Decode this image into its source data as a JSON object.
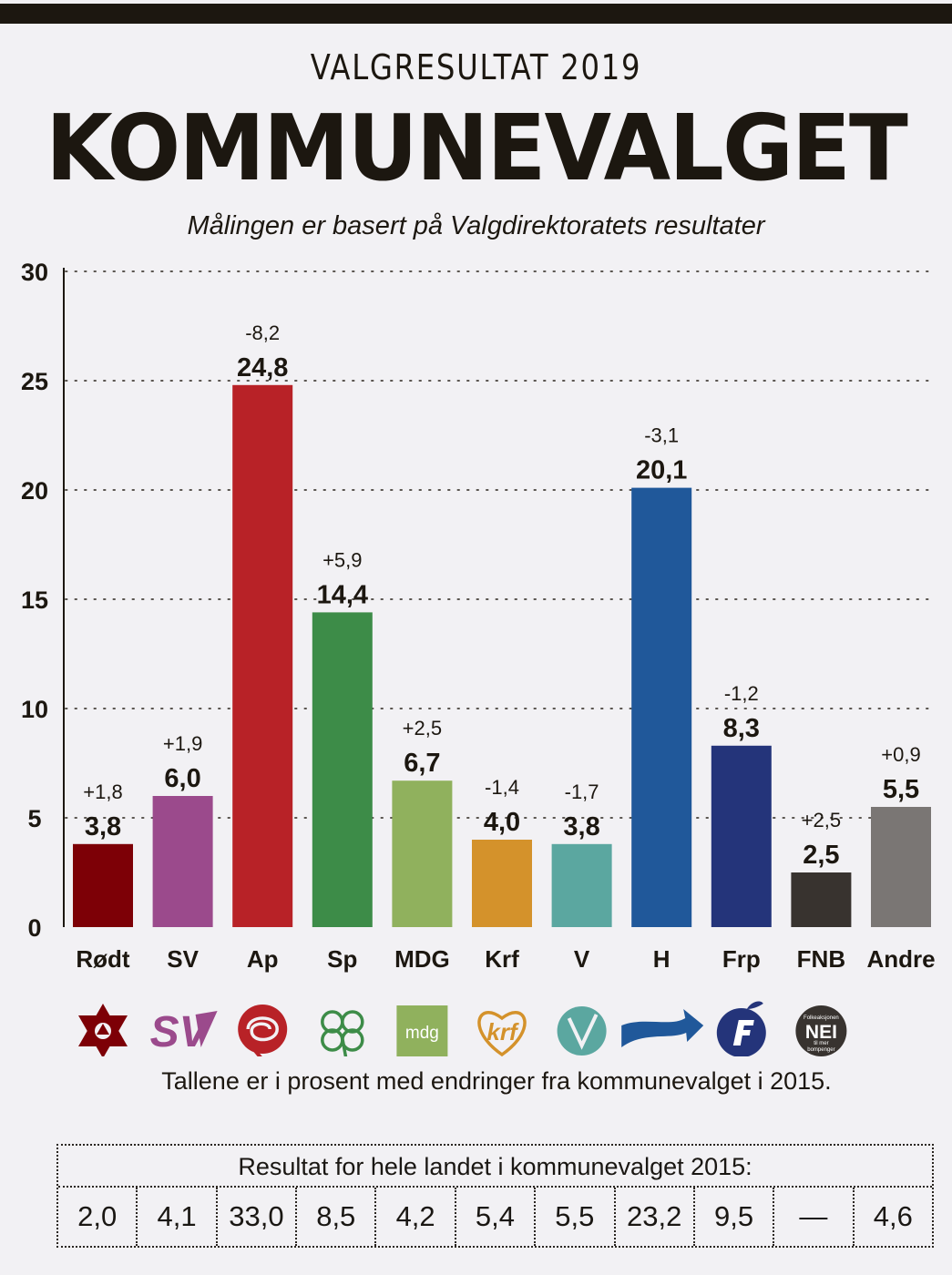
{
  "header": {
    "kicker": "VALGRESULTAT 2019",
    "headline": "KOMMUNEVALGET",
    "subtitle": "Målingen er basert på Valgdirektoratets resultater"
  },
  "chart_data": {
    "type": "bar",
    "title": "",
    "xlabel": "",
    "ylabel": "",
    "ylim": [
      0,
      30
    ],
    "yticks": [
      "0",
      "5",
      "10",
      "15",
      "20",
      "25",
      "30"
    ],
    "grid": true,
    "categories": [
      "Rødt",
      "SV",
      "Ap",
      "Sp",
      "MDG",
      "Krf",
      "V",
      "H",
      "Frp",
      "FNB",
      "Andre"
    ],
    "values": [
      3.8,
      6.0,
      24.8,
      14.4,
      6.7,
      4.0,
      3.8,
      20.1,
      8.3,
      2.5,
      5.5
    ],
    "value_labels": [
      "3,8",
      "6,0",
      "24,8",
      "14,4",
      "6,7",
      "4,0",
      "3,8",
      "20,1",
      "8,3",
      "2,5",
      "5,5"
    ],
    "changes": [
      "+1,8",
      "+1,9",
      "-8,2",
      "+5,9",
      "+2,5",
      "-1,4",
      "-1,7",
      "-3,1",
      "-1,2",
      "+2,5",
      "+0,9"
    ],
    "colors": [
      "#7d0006",
      "#9b4a8c",
      "#b82227",
      "#3d8c48",
      "#90b15d",
      "#d4922b",
      "#5ba7a0",
      "#20589a",
      "#24347a",
      "#38332f",
      "#7a7674"
    ],
    "logos": [
      "rodt-star-icon",
      "sv-logo-icon",
      "ap-rose-icon",
      "sp-clover-icon",
      "mdg-logo-icon",
      "krf-heart-icon",
      "v-circle-icon",
      "h-arrow-icon",
      "frp-apple-icon",
      "fnb-badge-icon",
      ""
    ],
    "logo_text": {
      "sv": "SV",
      "mdg": "mdg",
      "krf": "krf",
      "fnb_top": "Folkeaksjonen",
      "fnb_main": "NEI",
      "fnb_sub1": "til mer",
      "fnb_sub2": "bompenger"
    }
  },
  "footnote": "Tallene er i prosent med endringer fra kommunevalget i 2015.",
  "results2015": {
    "title": "Resultat for hele landet i kommunevalget 2015:",
    "values": [
      "2,0",
      "4,1",
      "33,0",
      "8,5",
      "4,2",
      "5,4",
      "5,5",
      "23,2",
      "9,5",
      "—",
      "4,6"
    ]
  }
}
